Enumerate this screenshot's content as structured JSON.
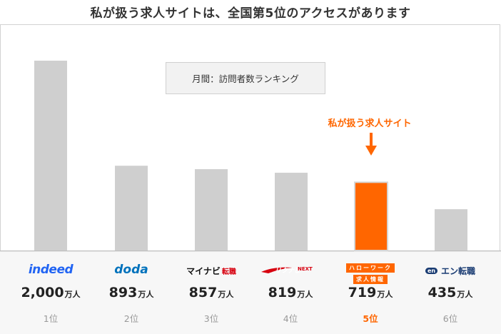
{
  "title": "私が扱う求人サイトは、全国第5位のアクセスがあります",
  "legend_label": "月間：訪問者数ランキング",
  "callout_label": "私が扱う求人サイト",
  "colors": {
    "bar": "#cfcfcf",
    "highlight": "#ff6600",
    "indeed": "#2164f3",
    "doda": "#0072bc",
    "mynavi_red": "#d7000f",
    "en": "#1a3c73"
  },
  "unit": "万人",
  "chart_data": {
    "type": "bar",
    "title": "私が扱う求人サイトは、全国第5位のアクセスがあります",
    "categories": [
      "indeed",
      "doda",
      "マイナビ転職",
      "リクナビNEXT",
      "ハローワーク求人情報",
      "エン転職"
    ],
    "values": [
      2000,
      893,
      857,
      819,
      719,
      435
    ],
    "value_labels": [
      "2,000",
      "893",
      "857",
      "819",
      "719",
      "435"
    ],
    "ranks": [
      "1位",
      "2位",
      "3位",
      "4位",
      "5位",
      "6位"
    ],
    "highlight_index": 4,
    "ylim": [
      0,
      2000
    ],
    "grid": false
  },
  "logos": {
    "indeed": "indeed",
    "doda": "doda",
    "mynavi": "マイナビ",
    "mynavi_suffix": "転職",
    "rikunabi": "リクナビ",
    "rikunabi_suffix": "NEXT",
    "hellowork_top": "ハローワーク",
    "hellowork_bottom": "求人情報",
    "en_mark": "en",
    "en": "エン転職"
  }
}
